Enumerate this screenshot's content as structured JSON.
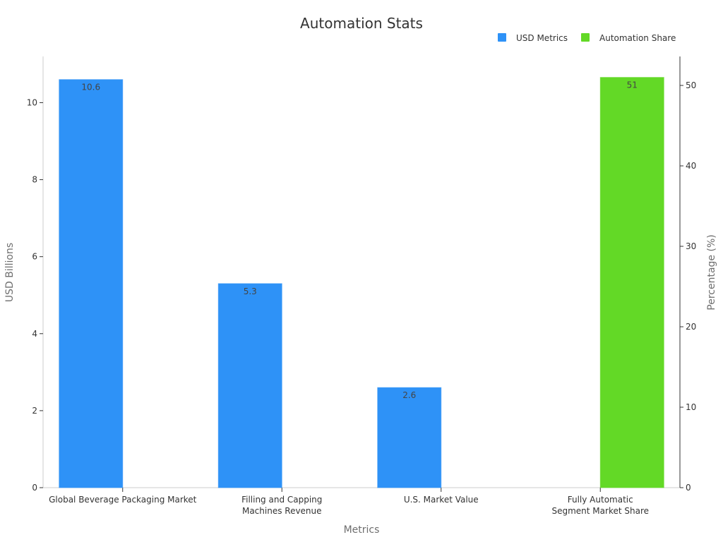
{
  "chart_data": {
    "type": "bar",
    "title": "Automation Stats",
    "xlabel": "Metrics",
    "ylabel": "USD Billions",
    "y2label": "Percentage (%)",
    "categories": [
      [
        "Global Beverage Packaging Market"
      ],
      [
        "Filling and Capping",
        "Machines Revenue"
      ],
      [
        "U.S. Market Value"
      ],
      [
        "Fully Automatic",
        "Segment Market Share"
      ]
    ],
    "series": [
      {
        "name": "USD Metrics",
        "axis": "left",
        "color": "#2e92f7",
        "values": [
          10.6,
          5.3,
          2.6,
          null
        ],
        "labels": [
          "10.6",
          "5.3",
          "2.6",
          ""
        ]
      },
      {
        "name": "Automation Share",
        "axis": "right",
        "color": "#63d926",
        "values": [
          null,
          null,
          null,
          51
        ],
        "labels": [
          "",
          "",
          "",
          "51"
        ]
      }
    ],
    "ylim": [
      0,
      11.2
    ],
    "y2lim": [
      0,
      53.6
    ],
    "yticks": [
      0,
      2,
      4,
      6,
      8,
      10
    ],
    "y2ticks": [
      0,
      10,
      20,
      30,
      40,
      50
    ],
    "legend_position": "top-right",
    "grid": false
  }
}
